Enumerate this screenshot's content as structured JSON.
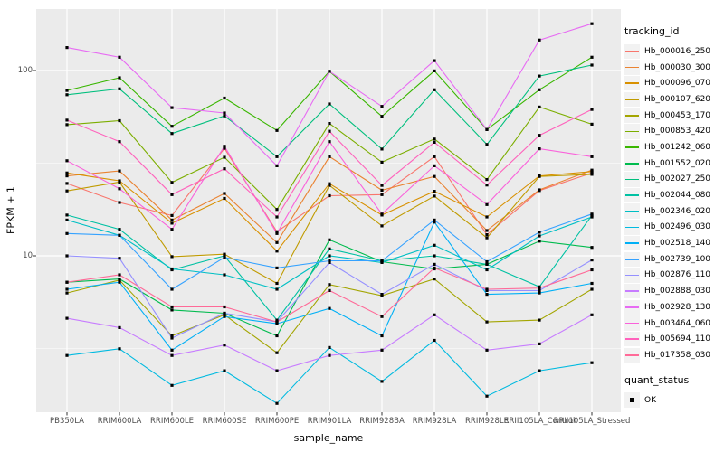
{
  "figure": {
    "y_axis": {
      "title": "FPKM + 1",
      "ticks": [
        {
          "label": "100",
          "value": 100
        },
        {
          "label": "10",
          "value": 10
        }
      ]
    },
    "x_axis": {
      "title": "sample_name"
    },
    "legend": {
      "title": "tracking_id",
      "quant_title": "quant_status",
      "quant_item": "OK"
    },
    "colors": {
      "panel_bg": "#EBEBEB",
      "gridline": "#FFFFFF",
      "tick_text": "#4D4D4D",
      "tick_mark": "#333333",
      "point": "#000000",
      "legend_key_bg": "#F2F2F2"
    }
  },
  "chart_data": {
    "type": "line",
    "title": "",
    "xlabel": "sample_name",
    "ylabel": "FPKM + 1",
    "y_scale": "log10",
    "ylim": [
      1.45,
      215
    ],
    "grid": "white major and minor gridlines on gray panel",
    "legend_position": "right",
    "point_marker": {
      "shape": "filled-square",
      "color": "#000000",
      "legend_label": "OK",
      "legend_title": "quant_status"
    },
    "categories": [
      "PB350LA",
      "RRIM600LA",
      "RRIM600LE",
      "RRIM600SE",
      "RRIM600PE",
      "RRIM901LA",
      "RRIM928BA",
      "RRIM928LA",
      "RRIM928LE",
      "RRII105LA_Control",
      "RRII105LA_Stressed"
    ],
    "series": [
      {
        "name": "Hb_000016_250",
        "color": "#F8766D",
        "values": [
          24.6,
          19.4,
          16.5,
          38,
          13.5,
          21.1,
          21.4,
          34.3,
          13,
          22.5,
          28
        ]
      },
      {
        "name": "Hb_000030_300",
        "color": "#EA8331",
        "values": [
          27,
          28.7,
          15.6,
          21.7,
          11.8,
          34.3,
          22.6,
          26.8,
          13.7,
          22.7,
          29
        ]
      },
      {
        "name": "Hb_000096_070",
        "color": "#D89000",
        "values": [
          28,
          25.4,
          15,
          20.4,
          10.6,
          24.5,
          16.6,
          22.3,
          16.2,
          27,
          28.5
        ]
      },
      {
        "name": "Hb_000107_620",
        "color": "#C09B00",
        "values": [
          22.4,
          25,
          9.9,
          10.2,
          7.1,
          24,
          14.5,
          21,
          12.5,
          26.8,
          27.5
        ]
      },
      {
        "name": "Hb_000453_170",
        "color": "#A3A500",
        "values": [
          6.3,
          7.4,
          3.7,
          4.8,
          3,
          7,
          6.1,
          7.5,
          4.4,
          4.5,
          6.6
        ]
      },
      {
        "name": "Hb_000853_420",
        "color": "#7CAE00",
        "values": [
          51,
          53.6,
          24.9,
          34,
          17.8,
          51.8,
          32,
          42.7,
          25.8,
          63.5,
          51.3
        ]
      },
      {
        "name": "Hb_001242_060",
        "color": "#39B600",
        "values": [
          78,
          91.4,
          50,
          71,
          47.5,
          99,
          56.6,
          99.6,
          48,
          78.7,
          118
        ]
      },
      {
        "name": "Hb_001552_020",
        "color": "#00BB4E",
        "values": [
          7.2,
          7.5,
          5.1,
          4.9,
          3.7,
          12.2,
          9.3,
          8.5,
          9,
          12,
          11.1
        ]
      },
      {
        "name": "Hb_002027_250",
        "color": "#00BF7D",
        "values": [
          74,
          79.6,
          45.7,
          56.9,
          34.3,
          66,
          37.7,
          78.7,
          39.9,
          93.4,
          107
        ]
      },
      {
        "name": "Hb_002044_080",
        "color": "#00C1A3",
        "values": [
          16.6,
          13.9,
          8.4,
          10,
          4.5,
          10.9,
          9.4,
          10,
          9,
          6.8,
          16.5
        ]
      },
      {
        "name": "Hb_002346_020",
        "color": "#00BFC4",
        "values": [
          15.6,
          12.9,
          8.5,
          7.9,
          6.6,
          10,
          9.2,
          11.4,
          8.4,
          12.8,
          16.2
        ]
      },
      {
        "name": "Hb_002496_030",
        "color": "#00BAE0",
        "values": [
          2.9,
          3.15,
          2,
          2.4,
          1.6,
          3.2,
          2.1,
          3.5,
          1.75,
          2.4,
          2.65
        ]
      },
      {
        "name": "Hb_002518_140",
        "color": "#00B0F6",
        "values": [
          6.6,
          7.2,
          3.1,
          4.7,
          4.3,
          5.2,
          3.7,
          15.2,
          6.2,
          6.3,
          7.1
        ]
      },
      {
        "name": "Hb_002739_100",
        "color": "#35A2FF",
        "values": [
          13.2,
          12.9,
          6.6,
          9.8,
          8.6,
          9.4,
          9.4,
          15.6,
          9.3,
          13.4,
          16.8
        ]
      },
      {
        "name": "Hb_002876_110",
        "color": "#9590FF",
        "values": [
          10,
          9.7,
          3.6,
          4.9,
          4.4,
          9.2,
          6.2,
          9,
          6.5,
          6.5,
          9.5
        ]
      },
      {
        "name": "Hb_002888_030",
        "color": "#C77CFF",
        "values": [
          4.6,
          4.1,
          2.9,
          3.3,
          2.4,
          2.9,
          3.1,
          4.8,
          3.1,
          3.35,
          4.8
        ]
      },
      {
        "name": "Hb_002928_130",
        "color": "#E76BF3",
        "values": [
          133,
          118,
          63,
          59,
          30.6,
          99,
          64,
          113,
          48,
          146,
          179
        ]
      },
      {
        "name": "Hb_003464_060",
        "color": "#FA62DB",
        "values": [
          32.6,
          23,
          13.9,
          39,
          13.2,
          41.3,
          16.8,
          30.6,
          18.9,
          37.8,
          34.3
        ]
      },
      {
        "name": "Hb_005694_110",
        "color": "#FF62BC",
        "values": [
          54,
          41.3,
          21.4,
          29.5,
          16.2,
          47,
          24,
          41,
          24.1,
          44.7,
          61.6
        ]
      },
      {
        "name": "Hb_017358_030",
        "color": "#FF6A98",
        "values": [
          7.2,
          7.9,
          5.3,
          5.3,
          4.4,
          6.5,
          4.7,
          8.6,
          6.6,
          6.7,
          8.4
        ]
      }
    ]
  }
}
